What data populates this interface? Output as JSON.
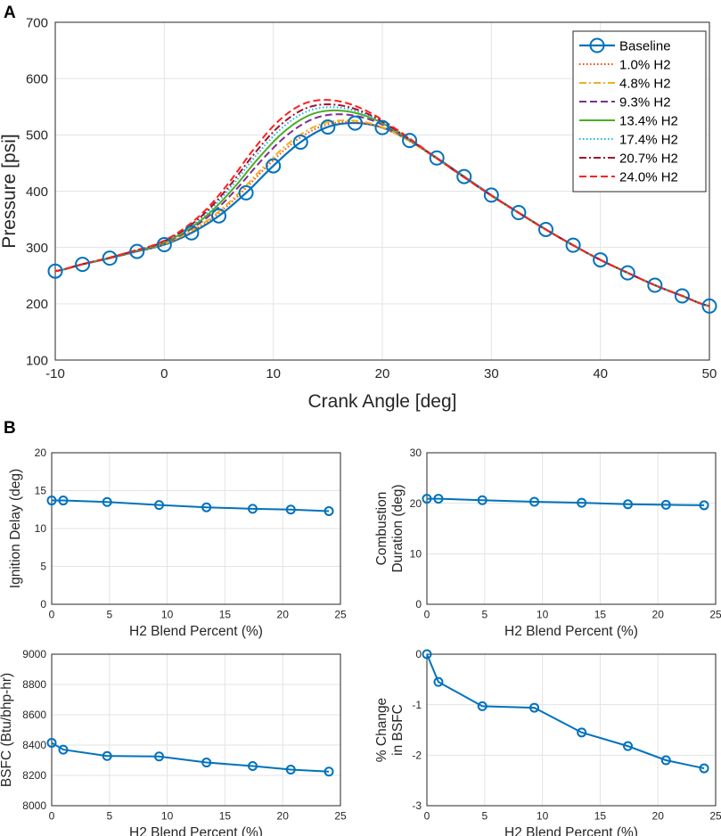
{
  "panel_labels": {
    "a": "A",
    "b": "B"
  },
  "chart_data": [
    {
      "id": "A",
      "type": "line",
      "title": "",
      "xlabel": "Crank Angle [deg]",
      "ylabel": "Pressure [psi]",
      "xlim": [
        -10,
        50
      ],
      "ylim": [
        100,
        700
      ],
      "xticks": [
        -10,
        0,
        10,
        20,
        30,
        40,
        50
      ],
      "yticks": [
        100,
        200,
        300,
        400,
        500,
        600,
        700
      ],
      "grid": true,
      "legend_position": "top-right",
      "series": [
        {
          "name": "Baseline",
          "color": "#0072BD",
          "style": "solid",
          "marker": "circle",
          "peak": 520,
          "peak_x": 17.5,
          "width": 6.2
        },
        {
          "name": "1.0% H2",
          "color": "#FF4500",
          "style": "dotted",
          "peak": 522,
          "peak_x": 17.0,
          "width": 6.2
        },
        {
          "name": "4.8% H2",
          "color": "#EDB120",
          "style": "dashdot",
          "peak": 525,
          "peak_x": 16.8,
          "width": 6.3
        },
        {
          "name": "9.3% H2",
          "color": "#7E2F8E",
          "style": "dashed",
          "peak": 536,
          "peak_x": 16.3,
          "width": 6.4
        },
        {
          "name": "13.4% H2",
          "color": "#4DAC26",
          "style": "solid",
          "peak": 543,
          "peak_x": 16.0,
          "width": 6.5
        },
        {
          "name": "17.4% H2",
          "color": "#1EB4E6",
          "style": "dotted",
          "peak": 549,
          "peak_x": 15.7,
          "width": 6.6
        },
        {
          "name": "20.7% H2",
          "color": "#A2142F",
          "style": "dashdot",
          "peak": 554,
          "peak_x": 15.5,
          "width": 6.7
        },
        {
          "name": "24.0% H2",
          "color": "#FF2020",
          "style": "dashed",
          "peak": 562,
          "peak_x": 15.3,
          "width": 6.8
        }
      ],
      "baseline_markers": {
        "x": [
          -10,
          -7.5,
          -5,
          -2.5,
          0,
          2.5,
          5,
          7.5,
          10,
          12.5,
          15,
          17.5,
          20,
          22.5,
          25,
          27.5,
          30,
          32.5,
          35,
          37.5,
          40,
          42.5,
          45,
          47.5,
          50
        ],
        "y": [
          258,
          270,
          281,
          293,
          305,
          326,
          356,
          397,
          445,
          487,
          514,
          521,
          513,
          490,
          459,
          426,
          393,
          362,
          332,
          304,
          278,
          255,
          233,
          214,
          196
        ]
      }
    },
    {
      "id": "B1",
      "type": "line",
      "xlabel": "H2 Blend Percent (%)",
      "ylabel": "Ignition Delay (deg)",
      "ylabel_lines": [
        "Ignition Delay (deg)"
      ],
      "xlim": [
        0,
        25
      ],
      "ylim": [
        0,
        20
      ],
      "xticks": [
        0,
        5,
        10,
        15,
        20,
        25
      ],
      "yticks": [
        0,
        5,
        10,
        15,
        20
      ],
      "grid": true,
      "x": [
        0,
        1.0,
        4.8,
        9.3,
        13.4,
        17.4,
        20.7,
        24.0
      ],
      "y": [
        13.7,
        13.7,
        13.5,
        13.1,
        12.8,
        12.6,
        12.5,
        12.3
      ]
    },
    {
      "id": "B2",
      "type": "line",
      "xlabel": "H2 Blend Percent (%)",
      "ylabel": "Combustion Duration (deg)",
      "ylabel_lines": [
        "Combustion",
        "Duration (deg)"
      ],
      "xlim": [
        0,
        25
      ],
      "ylim": [
        0,
        30
      ],
      "xticks": [
        0,
        5,
        10,
        15,
        20,
        25
      ],
      "yticks": [
        0,
        10,
        20,
        30
      ],
      "grid": true,
      "x": [
        0,
        1.0,
        4.8,
        9.3,
        13.4,
        17.4,
        20.7,
        24.0
      ],
      "y": [
        20.9,
        20.9,
        20.6,
        20.3,
        20.1,
        19.8,
        19.7,
        19.6
      ]
    },
    {
      "id": "B3",
      "type": "line",
      "xlabel": "H2 Blend Percent (%)",
      "ylabel": "BSFC (Btu/bhp-hr)",
      "ylabel_lines": [
        "BSFC (Btu/bhp-hr)"
      ],
      "xlim": [
        0,
        25
      ],
      "ylim": [
        8000,
        9000
      ],
      "xticks": [
        0,
        5,
        10,
        15,
        20,
        25
      ],
      "yticks": [
        8000,
        8200,
        8400,
        8600,
        8800,
        9000
      ],
      "grid": true,
      "x": [
        0,
        1.0,
        4.8,
        9.3,
        13.4,
        17.4,
        20.7,
        24.0
      ],
      "y": [
        8415,
        8370,
        8328,
        8325,
        8285,
        8262,
        8238,
        8225
      ]
    },
    {
      "id": "B4",
      "type": "line",
      "xlabel": "H2 Blend Percent (%)",
      "ylabel": "% Change in BSFC",
      "ylabel_lines": [
        "% Change",
        "in BSFC"
      ],
      "xlim": [
        0,
        25
      ],
      "ylim": [
        -3,
        0
      ],
      "xticks": [
        0,
        5,
        10,
        15,
        20,
        25
      ],
      "yticks": [
        -3,
        -2,
        -1,
        0
      ],
      "grid": true,
      "x": [
        0,
        1.0,
        4.8,
        9.3,
        13.4,
        17.4,
        20.7,
        24.0
      ],
      "y": [
        0,
        -0.55,
        -1.03,
        -1.06,
        -1.55,
        -1.82,
        -2.1,
        -2.26
      ]
    }
  ]
}
